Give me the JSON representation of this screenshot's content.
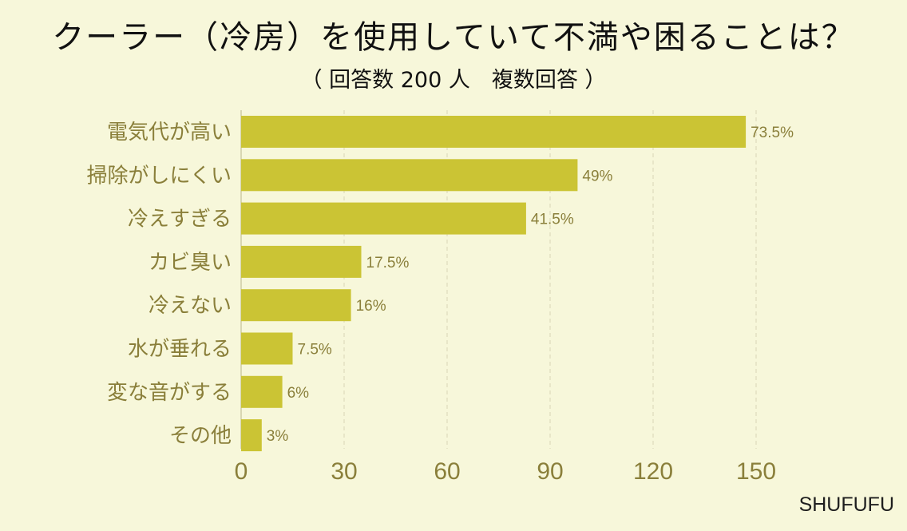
{
  "header": {
    "title": "クーラー（冷房）を使用していて不満や困ることは？",
    "subtitle": "（ 回答数 200 人　複数回答 ）"
  },
  "brand": "SHUFUFU",
  "chart_data": {
    "type": "bar",
    "orientation": "horizontal",
    "title": "クーラー（冷房）を使用していて不満や困ることは？",
    "subtitle": "（ 回答数 200 人　複数回答 ）",
    "categories": [
      "電気代が高い",
      "掃除がしにくい",
      "冷えすぎる",
      "カビ臭い",
      "冷えない",
      "水が垂れる",
      "変な音がする",
      "その他"
    ],
    "values": [
      147,
      98,
      83,
      35,
      32,
      15,
      12,
      6
    ],
    "value_labels": [
      "73.5%",
      "49%",
      "41.5%",
      "17.5%",
      "16%",
      "7.5%",
      "6%",
      "3%"
    ],
    "xlim": [
      0,
      160
    ],
    "xticks": [
      0,
      30,
      60,
      90,
      120,
      150
    ],
    "grid": true,
    "bar_color": "#cbc434",
    "text_color": "#8a7f3a",
    "background": "#f7f7da"
  }
}
